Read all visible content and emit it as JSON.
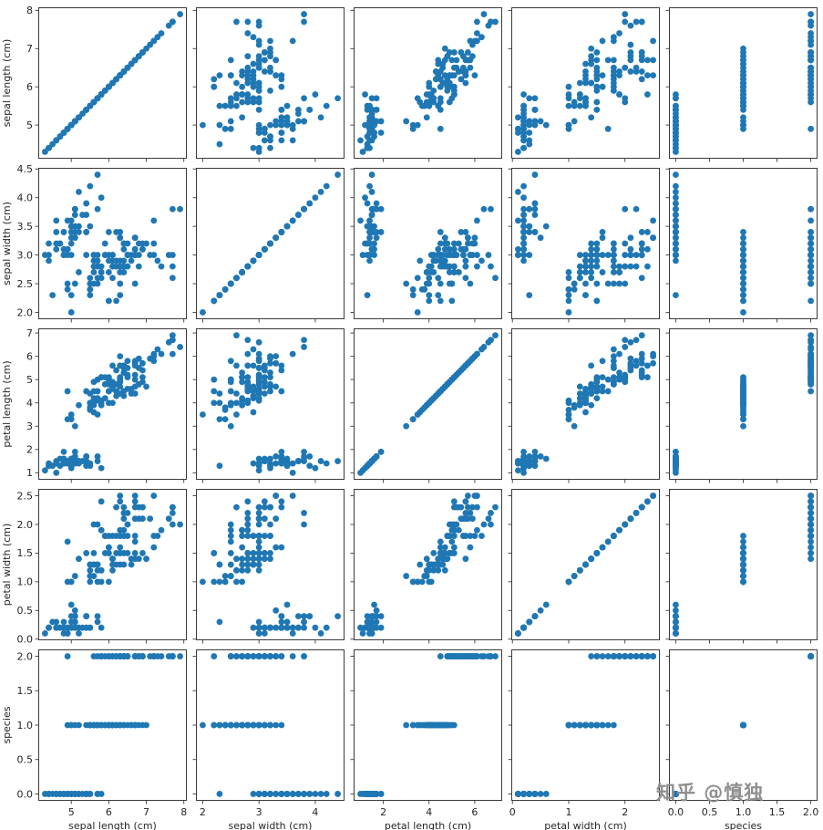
{
  "watermark": {
    "text": "知乎 @慎独"
  },
  "chart_data": {
    "type": "scatter",
    "subtype": "scatter_matrix",
    "title": "",
    "point_color": "#1f77b4",
    "grid": false,
    "legend": "none",
    "columns": [
      "sepal length (cm)",
      "sepal width (cm)",
      "petal length (cm)",
      "petal width (cm)",
      "species"
    ],
    "variables": [
      {
        "label": "sepal length (cm)",
        "lim": [
          4.12,
          8.08
        ],
        "xticks": [
          5,
          6,
          7,
          8
        ],
        "xtick_labels": [
          "5",
          "6",
          "7",
          "8"
        ],
        "yticks": [
          5,
          6,
          7,
          8
        ],
        "ytick_labels": [
          "5",
          "6",
          "7",
          "8"
        ]
      },
      {
        "label": "sepal width (cm)",
        "lim": [
          1.88,
          4.52
        ],
        "xticks": [
          2,
          3,
          4
        ],
        "xtick_labels": [
          "2",
          "3",
          "4"
        ],
        "yticks": [
          2.0,
          2.5,
          3.0,
          3.5,
          4.0,
          4.5
        ],
        "ytick_labels": [
          "2.0",
          "2.5",
          "3.0",
          "3.5",
          "4.0",
          "4.5"
        ]
      },
      {
        "label": "petal length (cm)",
        "lim": [
          0.7,
          7.2
        ],
        "xticks": [
          2,
          4,
          6
        ],
        "xtick_labels": [
          "2",
          "4",
          "6"
        ],
        "yticks": [
          1,
          2,
          3,
          4,
          5,
          6,
          7
        ],
        "ytick_labels": [
          "1",
          "2",
          "3",
          "4",
          "5",
          "6",
          "7"
        ]
      },
      {
        "label": "petal width (cm)",
        "lim": [
          -0.02,
          2.62
        ],
        "xticks": [
          0,
          1,
          2
        ],
        "xtick_labels": [
          "0",
          "1",
          "2"
        ],
        "yticks": [
          0.0,
          0.5,
          1.0,
          1.5,
          2.0,
          2.5
        ],
        "ytick_labels": [
          "0.0",
          "0.5",
          "1.0",
          "1.5",
          "2.0",
          "2.5"
        ]
      },
      {
        "label": "species",
        "lim": [
          -0.1,
          2.1
        ],
        "xticks": [
          0,
          0.5,
          1,
          1.5,
          2
        ],
        "xtick_labels": [
          "0.0",
          "0.5",
          "1.0",
          "1.5",
          "2.0"
        ],
        "yticks": [
          0,
          0.5,
          1,
          1.5,
          2
        ],
        "ytick_labels": [
          "0.0",
          "0.5",
          "1.0",
          "1.5",
          "2.0"
        ]
      }
    ],
    "points": [
      [
        5.1,
        3.5,
        1.4,
        0.2,
        0
      ],
      [
        4.9,
        3.0,
        1.4,
        0.2,
        0
      ],
      [
        4.7,
        3.2,
        1.3,
        0.2,
        0
      ],
      [
        4.6,
        3.1,
        1.5,
        0.2,
        0
      ],
      [
        5.0,
        3.6,
        1.4,
        0.2,
        0
      ],
      [
        5.4,
        3.9,
        1.7,
        0.4,
        0
      ],
      [
        4.6,
        3.4,
        1.4,
        0.3,
        0
      ],
      [
        5.0,
        3.4,
        1.5,
        0.2,
        0
      ],
      [
        4.4,
        2.9,
        1.4,
        0.2,
        0
      ],
      [
        4.9,
        3.1,
        1.5,
        0.1,
        0
      ],
      [
        5.4,
        3.7,
        1.5,
        0.2,
        0
      ],
      [
        4.8,
        3.4,
        1.6,
        0.2,
        0
      ],
      [
        4.8,
        3.0,
        1.4,
        0.1,
        0
      ],
      [
        4.3,
        3.0,
        1.1,
        0.1,
        0
      ],
      [
        5.8,
        4.0,
        1.2,
        0.2,
        0
      ],
      [
        5.7,
        4.4,
        1.5,
        0.4,
        0
      ],
      [
        5.4,
        3.9,
        1.3,
        0.4,
        0
      ],
      [
        5.1,
        3.5,
        1.4,
        0.3,
        0
      ],
      [
        5.7,
        3.8,
        1.7,
        0.3,
        0
      ],
      [
        5.1,
        3.8,
        1.5,
        0.3,
        0
      ],
      [
        5.4,
        3.4,
        1.7,
        0.2,
        0
      ],
      [
        5.1,
        3.7,
        1.5,
        0.4,
        0
      ],
      [
        4.6,
        3.6,
        1.0,
        0.2,
        0
      ],
      [
        5.1,
        3.3,
        1.7,
        0.5,
        0
      ],
      [
        4.8,
        3.4,
        1.9,
        0.2,
        0
      ],
      [
        5.0,
        3.0,
        1.6,
        0.2,
        0
      ],
      [
        5.0,
        3.4,
        1.6,
        0.4,
        0
      ],
      [
        5.2,
        3.5,
        1.5,
        0.2,
        0
      ],
      [
        5.2,
        3.4,
        1.4,
        0.2,
        0
      ],
      [
        4.7,
        3.2,
        1.6,
        0.2,
        0
      ],
      [
        4.8,
        3.1,
        1.6,
        0.2,
        0
      ],
      [
        5.4,
        3.4,
        1.5,
        0.4,
        0
      ],
      [
        5.2,
        4.1,
        1.5,
        0.1,
        0
      ],
      [
        5.5,
        4.2,
        1.4,
        0.2,
        0
      ],
      [
        4.9,
        3.1,
        1.5,
        0.2,
        0
      ],
      [
        5.0,
        3.2,
        1.2,
        0.2,
        0
      ],
      [
        5.5,
        3.5,
        1.3,
        0.2,
        0
      ],
      [
        4.9,
        3.6,
        1.4,
        0.1,
        0
      ],
      [
        4.4,
        3.0,
        1.3,
        0.2,
        0
      ],
      [
        5.1,
        3.4,
        1.5,
        0.2,
        0
      ],
      [
        5.0,
        3.5,
        1.3,
        0.3,
        0
      ],
      [
        4.5,
        2.3,
        1.3,
        0.3,
        0
      ],
      [
        4.4,
        3.2,
        1.3,
        0.2,
        0
      ],
      [
        5.0,
        3.5,
        1.6,
        0.6,
        0
      ],
      [
        5.1,
        3.8,
        1.9,
        0.4,
        0
      ],
      [
        4.8,
        3.0,
        1.4,
        0.3,
        0
      ],
      [
        5.1,
        3.8,
        1.6,
        0.2,
        0
      ],
      [
        4.6,
        3.2,
        1.4,
        0.2,
        0
      ],
      [
        5.3,
        3.7,
        1.5,
        0.2,
        0
      ],
      [
        5.0,
        3.3,
        1.4,
        0.2,
        0
      ],
      [
        7.0,
        3.2,
        4.7,
        1.4,
        1
      ],
      [
        6.4,
        3.2,
        4.5,
        1.5,
        1
      ],
      [
        6.9,
        3.1,
        4.9,
        1.5,
        1
      ],
      [
        5.5,
        2.3,
        4.0,
        1.3,
        1
      ],
      [
        6.5,
        2.8,
        4.6,
        1.5,
        1
      ],
      [
        5.7,
        2.8,
        4.5,
        1.3,
        1
      ],
      [
        6.3,
        3.3,
        4.7,
        1.6,
        1
      ],
      [
        4.9,
        2.4,
        3.3,
        1.0,
        1
      ],
      [
        6.6,
        2.9,
        4.6,
        1.3,
        1
      ],
      [
        5.2,
        2.7,
        3.9,
        1.4,
        1
      ],
      [
        5.0,
        2.0,
        3.5,
        1.0,
        1
      ],
      [
        5.9,
        3.0,
        4.2,
        1.5,
        1
      ],
      [
        6.0,
        2.2,
        4.0,
        1.0,
        1
      ],
      [
        6.1,
        2.9,
        4.7,
        1.4,
        1
      ],
      [
        5.6,
        2.9,
        3.6,
        1.3,
        1
      ],
      [
        6.7,
        3.1,
        4.4,
        1.4,
        1
      ],
      [
        5.6,
        3.0,
        4.5,
        1.5,
        1
      ],
      [
        5.8,
        2.7,
        4.1,
        1.0,
        1
      ],
      [
        6.2,
        2.2,
        4.5,
        1.5,
        1
      ],
      [
        5.6,
        2.5,
        3.9,
        1.1,
        1
      ],
      [
        5.9,
        3.2,
        4.8,
        1.8,
        1
      ],
      [
        6.1,
        2.8,
        4.0,
        1.3,
        1
      ],
      [
        6.3,
        2.5,
        4.9,
        1.5,
        1
      ],
      [
        6.1,
        2.8,
        4.7,
        1.2,
        1
      ],
      [
        6.4,
        2.9,
        4.3,
        1.3,
        1
      ],
      [
        6.6,
        3.0,
        4.4,
        1.4,
        1
      ],
      [
        6.8,
        2.8,
        4.8,
        1.4,
        1
      ],
      [
        6.7,
        3.0,
        5.0,
        1.7,
        1
      ],
      [
        6.0,
        2.9,
        4.5,
        1.5,
        1
      ],
      [
        5.7,
        2.6,
        3.5,
        1.0,
        1
      ],
      [
        5.5,
        2.4,
        3.8,
        1.1,
        1
      ],
      [
        5.5,
        2.4,
        3.7,
        1.0,
        1
      ],
      [
        5.8,
        2.7,
        3.9,
        1.2,
        1
      ],
      [
        6.0,
        2.7,
        5.1,
        1.6,
        1
      ],
      [
        5.4,
        3.0,
        4.5,
        1.5,
        1
      ],
      [
        6.0,
        3.4,
        4.5,
        1.6,
        1
      ],
      [
        6.7,
        3.1,
        4.7,
        1.5,
        1
      ],
      [
        6.3,
        2.3,
        4.4,
        1.3,
        1
      ],
      [
        5.6,
        3.0,
        4.1,
        1.3,
        1
      ],
      [
        5.5,
        2.5,
        4.0,
        1.3,
        1
      ],
      [
        5.5,
        2.6,
        4.4,
        1.2,
        1
      ],
      [
        6.1,
        3.0,
        4.6,
        1.4,
        1
      ],
      [
        5.8,
        2.6,
        4.0,
        1.2,
        1
      ],
      [
        5.0,
        2.3,
        3.3,
        1.0,
        1
      ],
      [
        5.6,
        2.7,
        4.2,
        1.3,
        1
      ],
      [
        5.7,
        3.0,
        4.2,
        1.2,
        1
      ],
      [
        5.7,
        2.9,
        4.2,
        1.3,
        1
      ],
      [
        6.2,
        2.9,
        4.3,
        1.3,
        1
      ],
      [
        5.1,
        2.5,
        3.0,
        1.1,
        1
      ],
      [
        5.7,
        2.8,
        4.1,
        1.3,
        1
      ],
      [
        6.3,
        3.3,
        6.0,
        2.5,
        2
      ],
      [
        5.8,
        2.7,
        5.1,
        1.9,
        2
      ],
      [
        7.1,
        3.0,
        5.9,
        2.1,
        2
      ],
      [
        6.3,
        2.9,
        5.6,
        1.8,
        2
      ],
      [
        6.5,
        3.0,
        5.8,
        2.2,
        2
      ],
      [
        7.6,
        3.0,
        6.6,
        2.1,
        2
      ],
      [
        4.9,
        2.5,
        4.5,
        1.7,
        2
      ],
      [
        7.3,
        2.9,
        6.3,
        1.8,
        2
      ],
      [
        6.7,
        2.5,
        5.8,
        1.8,
        2
      ],
      [
        7.2,
        3.6,
        6.1,
        2.5,
        2
      ],
      [
        6.5,
        3.2,
        5.1,
        2.0,
        2
      ],
      [
        6.4,
        2.7,
        5.3,
        1.9,
        2
      ],
      [
        6.8,
        3.0,
        5.5,
        2.1,
        2
      ],
      [
        5.7,
        2.5,
        5.0,
        2.0,
        2
      ],
      [
        5.8,
        2.8,
        5.1,
        2.4,
        2
      ],
      [
        6.4,
        3.2,
        5.3,
        2.3,
        2
      ],
      [
        6.5,
        3.0,
        5.5,
        1.8,
        2
      ],
      [
        7.7,
        3.8,
        6.7,
        2.2,
        2
      ],
      [
        7.7,
        2.6,
        6.9,
        2.3,
        2
      ],
      [
        6.0,
        2.2,
        5.0,
        1.5,
        2
      ],
      [
        6.9,
        3.2,
        5.7,
        2.3,
        2
      ],
      [
        5.6,
        2.8,
        4.9,
        2.0,
        2
      ],
      [
        7.7,
        2.8,
        6.7,
        2.0,
        2
      ],
      [
        6.3,
        2.7,
        4.9,
        1.8,
        2
      ],
      [
        6.7,
        3.3,
        5.7,
        2.1,
        2
      ],
      [
        7.2,
        3.2,
        6.0,
        1.8,
        2
      ],
      [
        6.2,
        2.8,
        4.8,
        1.8,
        2
      ],
      [
        6.1,
        3.0,
        4.9,
        1.8,
        2
      ],
      [
        6.4,
        2.8,
        5.6,
        2.1,
        2
      ],
      [
        7.2,
        3.0,
        5.8,
        1.6,
        2
      ],
      [
        7.4,
        2.8,
        6.1,
        1.9,
        2
      ],
      [
        7.9,
        3.8,
        6.4,
        2.0,
        2
      ],
      [
        6.4,
        2.8,
        5.6,
        2.2,
        2
      ],
      [
        6.3,
        2.8,
        5.1,
        1.5,
        2
      ],
      [
        6.1,
        2.6,
        5.6,
        1.4,
        2
      ],
      [
        7.7,
        3.0,
        6.1,
        2.3,
        2
      ],
      [
        6.3,
        3.4,
        5.6,
        2.4,
        2
      ],
      [
        6.4,
        3.1,
        5.5,
        1.8,
        2
      ],
      [
        6.0,
        3.0,
        4.8,
        1.8,
        2
      ],
      [
        6.9,
        3.1,
        5.4,
        2.1,
        2
      ],
      [
        6.7,
        3.1,
        5.6,
        2.4,
        2
      ],
      [
        6.9,
        3.1,
        5.1,
        2.3,
        2
      ],
      [
        5.8,
        2.7,
        5.1,
        1.9,
        2
      ],
      [
        6.8,
        3.2,
        5.9,
        2.3,
        2
      ],
      [
        6.7,
        3.3,
        5.7,
        2.5,
        2
      ],
      [
        6.7,
        3.0,
        5.2,
        2.3,
        2
      ],
      [
        6.3,
        2.5,
        5.0,
        1.9,
        2
      ],
      [
        6.5,
        3.0,
        5.2,
        2.0,
        2
      ],
      [
        6.2,
        3.4,
        5.4,
        2.3,
        2
      ],
      [
        5.9,
        3.0,
        5.1,
        1.8,
        2
      ]
    ]
  }
}
